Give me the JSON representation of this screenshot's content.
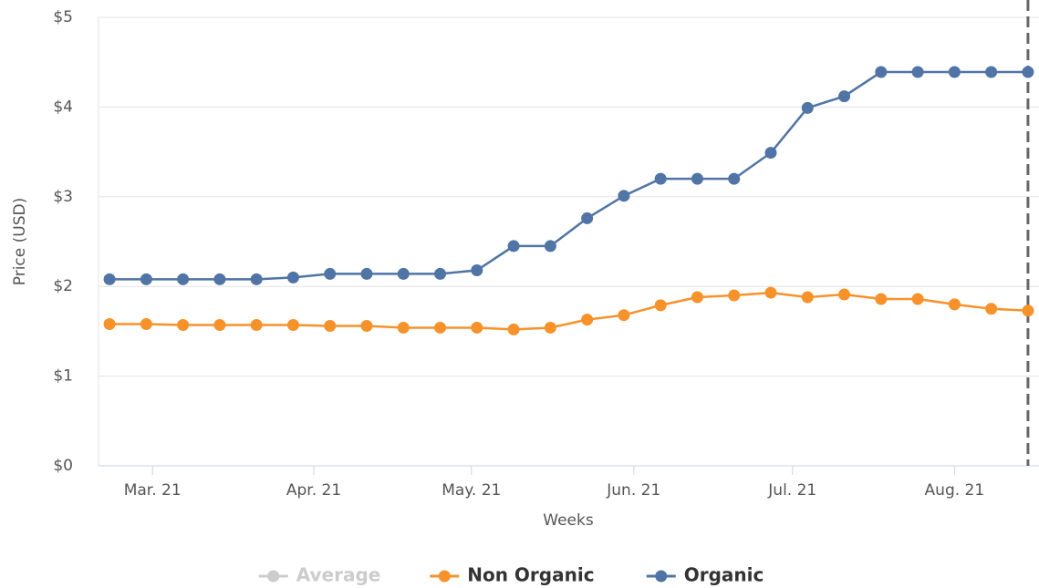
{
  "chart_data": {
    "type": "line",
    "x_label": "Weeks",
    "y_label": "Price (USD)",
    "x": [
      0,
      1,
      2,
      3,
      4,
      5,
      6,
      7,
      8,
      9,
      10,
      11,
      12,
      13,
      14,
      15,
      16,
      17,
      18,
      19,
      20,
      21,
      22,
      23,
      24,
      25
    ],
    "xlim": [
      -0.3,
      25.3
    ],
    "xticks": [
      {
        "value": 1.17,
        "label": "Mar. 21"
      },
      {
        "value": 5.56,
        "label": "Apr. 21"
      },
      {
        "value": 9.85,
        "label": "May. 21"
      },
      {
        "value": 14.27,
        "label": "Jun. 21"
      },
      {
        "value": 18.59,
        "label": "Jul. 21"
      },
      {
        "value": 23.0,
        "label": "Aug. 21"
      }
    ],
    "ylim": [
      0,
      5
    ],
    "yticks": [
      {
        "value": 0,
        "label": "$0"
      },
      {
        "value": 1,
        "label": "$1"
      },
      {
        "value": 2,
        "label": "$2"
      },
      {
        "value": 3,
        "label": "$3"
      },
      {
        "value": 4,
        "label": "$4"
      },
      {
        "value": 5,
        "label": "$5"
      }
    ],
    "grid": true,
    "marker_x": 25,
    "series": [
      {
        "name": "Average",
        "color": "#cccccc",
        "visible": false
      },
      {
        "name": "Non Organic",
        "color": "#f7922b",
        "visible": true,
        "values": [
          1.58,
          1.58,
          1.57,
          1.57,
          1.57,
          1.57,
          1.56,
          1.56,
          1.54,
          1.54,
          1.54,
          1.52,
          1.54,
          1.63,
          1.68,
          1.79,
          1.88,
          1.9,
          1.93,
          1.88,
          1.91,
          1.86,
          1.86,
          1.8,
          1.75,
          1.73
        ]
      },
      {
        "name": "Organic",
        "color": "#4f74a5",
        "visible": true,
        "values": [
          2.08,
          2.08,
          2.08,
          2.08,
          2.08,
          2.1,
          2.14,
          2.14,
          2.14,
          2.14,
          2.18,
          2.45,
          2.45,
          2.76,
          3.01,
          3.2,
          3.2,
          3.2,
          3.49,
          3.99,
          4.12,
          4.39,
          4.39,
          4.39,
          4.39,
          4.39
        ]
      }
    ]
  }
}
